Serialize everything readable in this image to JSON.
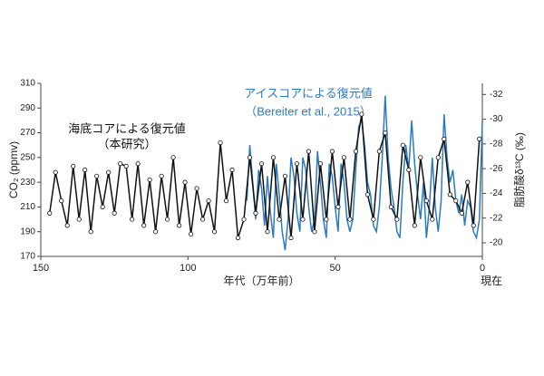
{
  "chart_data": {
    "type": "line",
    "xlabel": "年代（万年前）",
    "x_end_label": "現在",
    "ylabel": "CO₂ (ppmv)",
    "y2label": "脂肪酸δ¹³C (‰)",
    "xlim": [
      150,
      0
    ],
    "xticks": [
      150,
      100,
      50,
      0
    ],
    "ylim": [
      170,
      310
    ],
    "yticks": [
      170,
      190,
      210,
      230,
      250,
      270,
      290,
      310
    ],
    "y2lim": [
      -18.9,
      -32.9
    ],
    "y2ticks": [
      -20,
      -22,
      -24,
      -26,
      -28,
      -30,
      -32
    ],
    "annotations": [
      {
        "text": "海底コアによる復元値",
        "color": "#111111"
      },
      {
        "text": "（本研究）",
        "color": "#111111"
      },
      {
        "text": "アイスコアによる復元値",
        "color": "#2b7bc4"
      },
      {
        "text": "（Bereiter et al., 2015）",
        "color": "#2b7bc4"
      }
    ],
    "series": [
      {
        "name": "アイスコアによる復元値",
        "color": "#2b7bc4",
        "markers": false,
        "x": [
          80,
          79,
          78,
          77,
          76,
          75,
          74,
          73,
          72,
          71,
          70,
          69,
          68,
          67,
          66,
          65,
          64,
          63,
          62,
          61,
          60,
          59,
          58,
          57,
          56,
          55,
          54,
          53,
          52,
          51,
          50,
          49,
          48,
          47,
          46,
          45,
          44,
          43,
          42,
          41,
          40,
          39,
          38,
          37,
          36,
          35,
          34,
          33,
          32,
          31,
          30,
          29,
          28,
          27,
          26,
          25,
          24,
          23,
          22,
          21,
          20,
          19,
          18,
          17,
          16,
          15,
          14,
          13,
          12,
          11,
          10,
          9,
          8,
          7,
          6,
          5,
          4,
          3,
          2,
          1,
          0
        ],
        "values": [
          215,
          260,
          230,
          200,
          240,
          225,
          195,
          235,
          205,
          185,
          245,
          220,
          190,
          175,
          200,
          250,
          235,
          205,
          190,
          250,
          240,
          210,
          190,
          200,
          255,
          230,
          200,
          185,
          245,
          235,
          210,
          190,
          245,
          230,
          200,
          190,
          200,
          240,
          275,
          280,
          260,
          230,
          220,
          195,
          190,
          210,
          250,
          300,
          250,
          225,
          210,
          190,
          185,
          230,
          260,
          240,
          280,
          245,
          220,
          200,
          230,
          185,
          210,
          250,
          210,
          190,
          215,
          285,
          250,
          230,
          240,
          215,
          205,
          220,
          195,
          215,
          210,
          190,
          185,
          200,
          280
        ]
      },
      {
        "name": "海底コアによる復元値",
        "color": "#111111",
        "markers": true,
        "x": [
          147,
          145,
          143,
          141,
          139,
          137,
          135,
          133,
          131,
          129,
          127,
          125,
          123,
          121,
          119,
          117,
          115,
          113,
          111,
          109,
          107,
          105,
          103,
          101,
          99,
          97,
          95,
          93,
          91,
          89,
          87,
          85,
          83,
          81,
          79,
          77,
          75,
          73,
          71,
          69,
          67,
          65,
          63,
          61,
          59,
          57,
          55,
          53,
          51,
          49,
          47,
          45,
          43,
          41,
          39,
          37,
          35,
          33,
          31,
          29,
          27,
          25,
          23,
          21,
          19,
          17,
          15,
          13,
          11,
          9,
          7,
          5,
          3,
          1
        ],
        "values": [
          205,
          238,
          215,
          195,
          243,
          200,
          240,
          190,
          235,
          210,
          238,
          205,
          245,
          243,
          200,
          245,
          195,
          232,
          190,
          235,
          200,
          250,
          195,
          230,
          188,
          225,
          200,
          215,
          190,
          262,
          215,
          240,
          185,
          200,
          250,
          205,
          245,
          190,
          250,
          200,
          235,
          185,
          245,
          200,
          255,
          190,
          245,
          200,
          255,
          210,
          250,
          200,
          255,
          285,
          220,
          200,
          255,
          270,
          210,
          200,
          260,
          240,
          195,
          250,
          215,
          200,
          250,
          265,
          220,
          215,
          205,
          230,
          195,
          265
        ]
      }
    ]
  }
}
